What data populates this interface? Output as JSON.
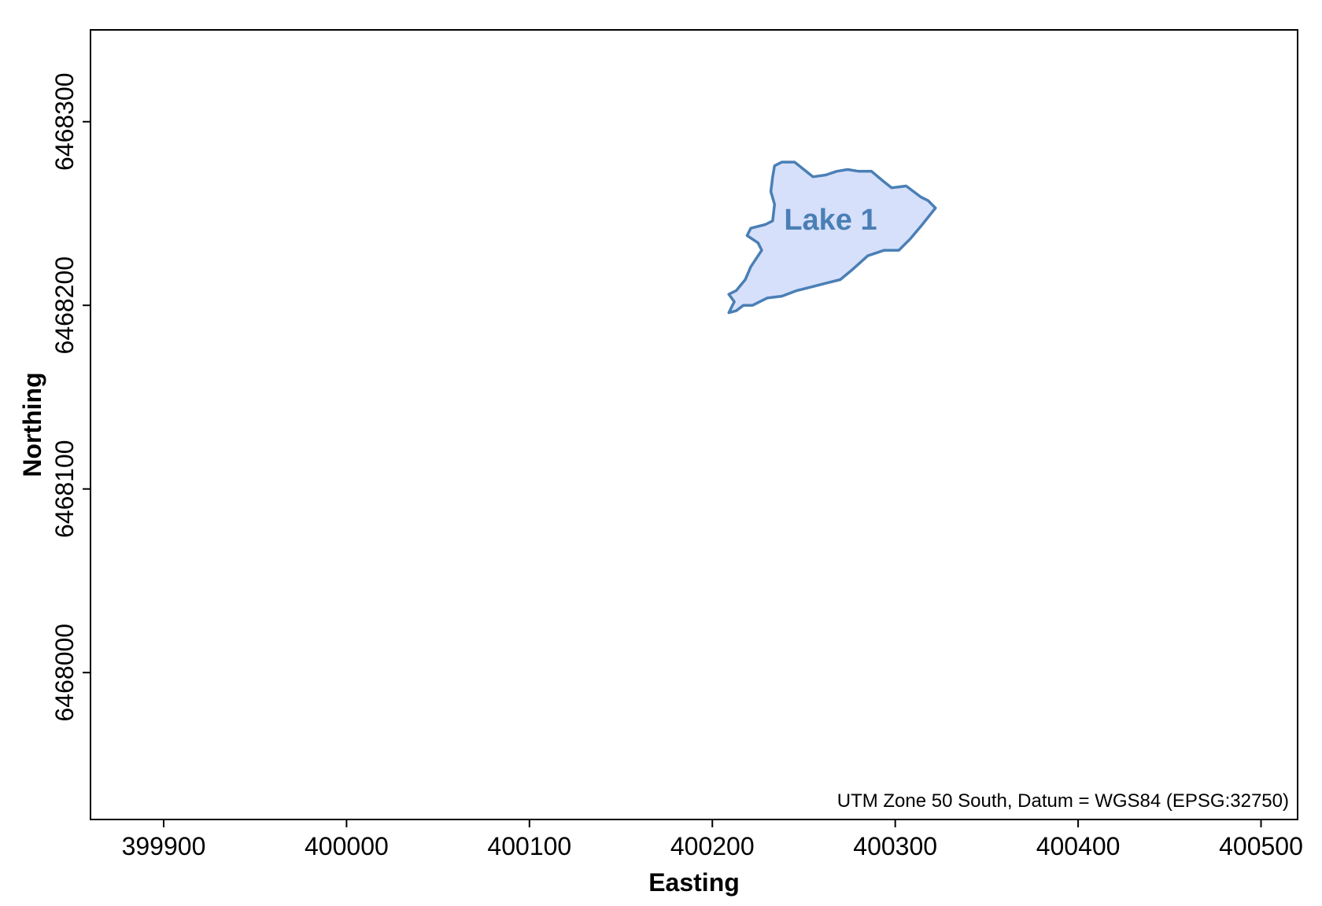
{
  "map": {
    "x_axis_title": "Easting",
    "y_axis_title": "Northing",
    "x_ticks": [
      399900,
      400000,
      400100,
      400200,
      400300,
      400400,
      400500
    ],
    "y_ticks": [
      6468000,
      6468100,
      6468200,
      6468300
    ],
    "x_range": [
      399860,
      400520
    ],
    "y_range": [
      6467920,
      6468350
    ],
    "lake": {
      "label": "Lake 1",
      "fill_color": "#d6e0fb",
      "stroke_color": "#4a7fb5",
      "outline": [
        [
          400234,
          6468276
        ],
        [
          400238,
          6468278
        ],
        [
          400245,
          6468278
        ],
        [
          400250,
          6468274
        ],
        [
          400255,
          6468270
        ],
        [
          400262,
          6468271
        ],
        [
          400268,
          6468273
        ],
        [
          400274,
          6468274
        ],
        [
          400280,
          6468273
        ],
        [
          400287,
          6468273
        ],
        [
          400293,
          6468268
        ],
        [
          400298,
          6468264
        ],
        [
          400306,
          6468265
        ],
        [
          400314,
          6468259
        ],
        [
          400318,
          6468257
        ],
        [
          400322,
          6468253
        ],
        [
          400314,
          6468243
        ],
        [
          400308,
          6468236
        ],
        [
          400302,
          6468230
        ],
        [
          400294,
          6468230
        ],
        [
          400285,
          6468227
        ],
        [
          400276,
          6468219
        ],
        [
          400270,
          6468214
        ],
        [
          400262,
          6468212
        ],
        [
          400254,
          6468210
        ],
        [
          400246,
          6468208
        ],
        [
          400238,
          6468205
        ],
        [
          400230,
          6468204
        ],
        [
          400222,
          6468200
        ],
        [
          400217,
          6468200
        ],
        [
          400213,
          6468197
        ],
        [
          400209,
          6468196
        ],
        [
          400212,
          6468202
        ],
        [
          400209,
          6468206
        ],
        [
          400213,
          6468208
        ],
        [
          400218,
          6468214
        ],
        [
          400221,
          6468221
        ],
        [
          400227,
          6468230
        ],
        [
          400225,
          6468234
        ],
        [
          400219,
          6468238
        ],
        [
          400221,
          6468242
        ],
        [
          400229,
          6468244
        ],
        [
          400233,
          6468246
        ],
        [
          400234,
          6468255
        ],
        [
          400232,
          6468262
        ],
        [
          400233,
          6468270
        ]
      ]
    },
    "crs_note": "UTM Zone 50 South, Datum = WGS84 (EPSG:32750)"
  }
}
